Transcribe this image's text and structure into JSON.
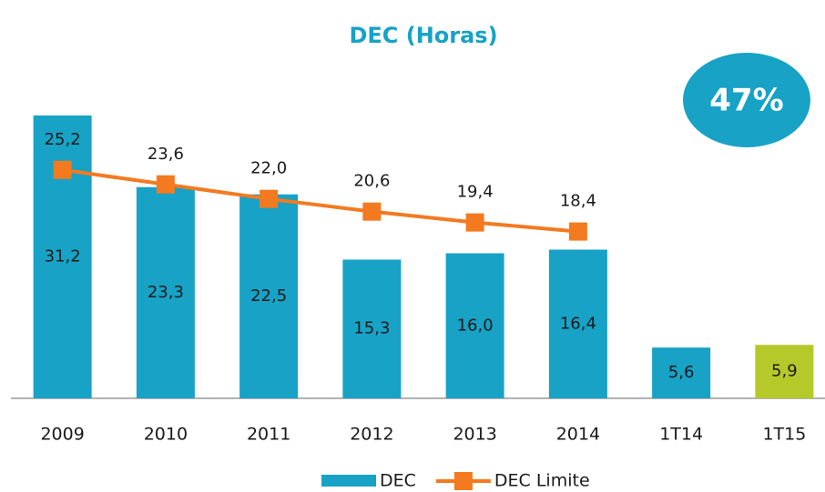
{
  "chart_data": {
    "type": "bar_line",
    "title": "DEC (Horas)",
    "annotation": "47%",
    "categories": [
      "2009",
      "2010",
      "2011",
      "2012",
      "2013",
      "2014",
      "1T14",
      "1T15"
    ],
    "series": [
      {
        "name": "DEC",
        "type": "bar",
        "color": "#17a2c6",
        "colors": [
          "#17a2c6",
          "#17a2c6",
          "#17a2c6",
          "#17a2c6",
          "#17a2c6",
          "#17a2c6",
          "#17a2c6",
          "#b5c92a"
        ],
        "values": [
          31.2,
          23.3,
          22.5,
          15.3,
          16.0,
          16.4,
          5.6,
          5.9
        ],
        "value_labels": [
          "31,2",
          "23,3",
          "22,5",
          "15,3",
          "16,0",
          "16,4",
          "5,6",
          "5,9"
        ]
      },
      {
        "name": "DEC Limite",
        "type": "line",
        "color": "#f47a20",
        "values": [
          25.2,
          23.6,
          22.0,
          20.6,
          19.4,
          18.4,
          null,
          null
        ],
        "value_labels": [
          "25,2",
          "23,6",
          "22,0",
          "20,6",
          "19,4",
          "18,4",
          null,
          null
        ]
      }
    ]
  }
}
